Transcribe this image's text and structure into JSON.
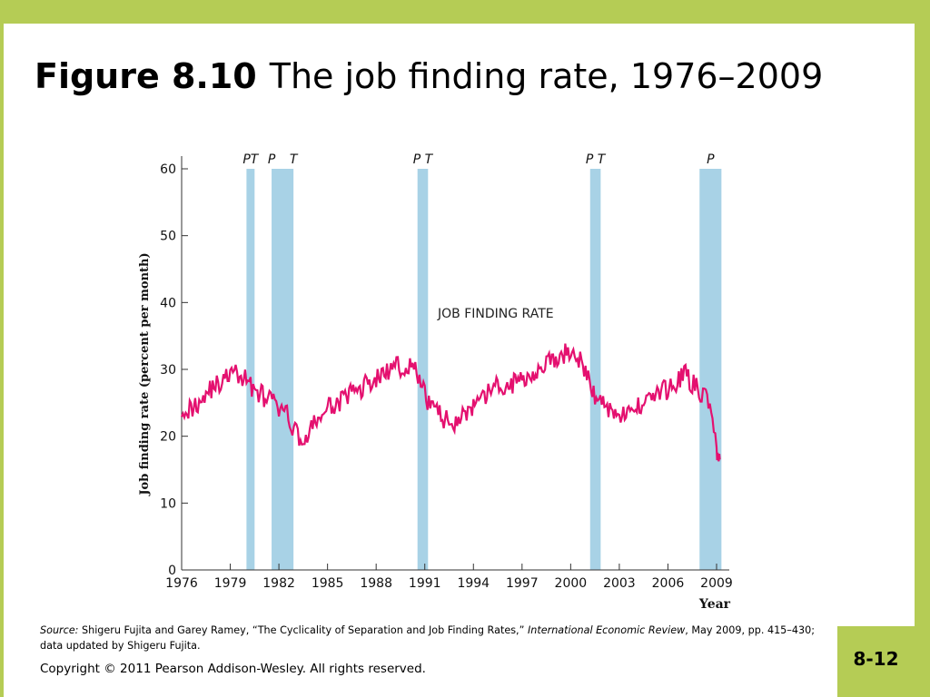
{
  "slide": {
    "title_bold": "Figure 8.10",
    "title_rest": "The job finding rate, 1976–2009",
    "source_label": "Source:",
    "source_text": " Shigeru Fujita and Garey Ramey, “The Cyclicality of Separation and Job Finding Rates,” ",
    "source_journal": "International Economic Review",
    "source_tail": ", May 2009, pp. 415–430; data updated by Shigeru Fujita.",
    "copyright": "Copyright © 2011 Pearson Addison-Wesley. All rights reserved.",
    "page_number": "8-12",
    "colors": {
      "frame": "#b5cc55",
      "recession": "#a8d2e6",
      "series": "#e4106f"
    }
  },
  "chart_data": {
    "type": "line",
    "title": "",
    "xlabel": "Year",
    "ylabel": "Job finding rate (percent per month)",
    "xlim": [
      1976,
      2009.3
    ],
    "ylim": [
      0,
      60
    ],
    "x_ticks": [
      1976,
      1979,
      1982,
      1985,
      1988,
      1991,
      1994,
      1997,
      2000,
      2003,
      2006,
      2009
    ],
    "y_ticks": [
      0,
      10,
      20,
      30,
      40,
      50,
      60
    ],
    "grid": false,
    "series": [
      {
        "name": "JOB FINDING RATE",
        "x": [
          1976.0,
          1976.5,
          1977.0,
          1977.5,
          1978.0,
          1978.5,
          1979.0,
          1979.5,
          1980.0,
          1980.5,
          1981.0,
          1981.5,
          1982.0,
          1982.5,
          1983.0,
          1983.5,
          1984.0,
          1984.5,
          1985.0,
          1985.5,
          1986.0,
          1986.5,
          1987.0,
          1987.5,
          1988.0,
          1988.5,
          1989.0,
          1989.5,
          1990.0,
          1990.5,
          1991.0,
          1991.5,
          1992.0,
          1992.5,
          1993.0,
          1993.5,
          1994.0,
          1994.5,
          1995.0,
          1995.5,
          1996.0,
          1996.5,
          1997.0,
          1997.5,
          1998.0,
          1998.5,
          1999.0,
          1999.5,
          2000.0,
          2000.5,
          2001.0,
          2001.5,
          2002.0,
          2002.5,
          2003.0,
          2003.5,
          2004.0,
          2004.5,
          2005.0,
          2005.5,
          2006.0,
          2006.5,
          2007.0,
          2007.5,
          2008.0,
          2008.5,
          2009.0,
          2009.2
        ],
        "y": [
          24.5,
          24,
          25,
          26.5,
          27.5,
          28,
          29.5,
          29,
          28.5,
          27,
          26,
          25.5,
          24,
          23,
          21,
          19,
          21,
          23,
          24,
          25,
          25.5,
          26.5,
          27,
          28,
          28.5,
          29.5,
          30,
          30.5,
          30.5,
          29.5,
          26,
          24.5,
          23,
          22,
          22.5,
          23.5,
          24,
          25,
          27,
          27.5,
          27,
          28,
          28.5,
          29.5,
          30,
          31,
          31,
          32,
          33,
          31.5,
          29,
          26,
          25,
          24,
          23.5,
          23,
          24,
          25.5,
          26,
          26.5,
          27,
          28,
          29.5,
          28,
          26.5,
          25.5,
          18,
          16.5
        ]
      }
    ],
    "recession_bars": [
      {
        "label": "PT",
        "start": 1980.0,
        "end": 1980.5
      },
      {
        "label": "P",
        "start": 1981.55,
        "end": 1981.55
      },
      {
        "label": "T",
        "start": 1982.9,
        "end": 1982.9
      },
      {
        "label": "P T",
        "start": 1990.55,
        "end": 1991.2
      },
      {
        "label": "P T",
        "start": 2001.2,
        "end": 2001.85
      },
      {
        "label": "P",
        "start": 2007.95,
        "end": 2009.3
      }
    ],
    "bar_spans": [
      [
        1980.0,
        1980.5
      ],
      [
        1981.55,
        1982.9
      ],
      [
        1990.55,
        1991.2
      ],
      [
        2001.2,
        2001.85
      ],
      [
        2007.95,
        2009.3
      ]
    ],
    "annotation": "JOB FINDING RATE"
  }
}
